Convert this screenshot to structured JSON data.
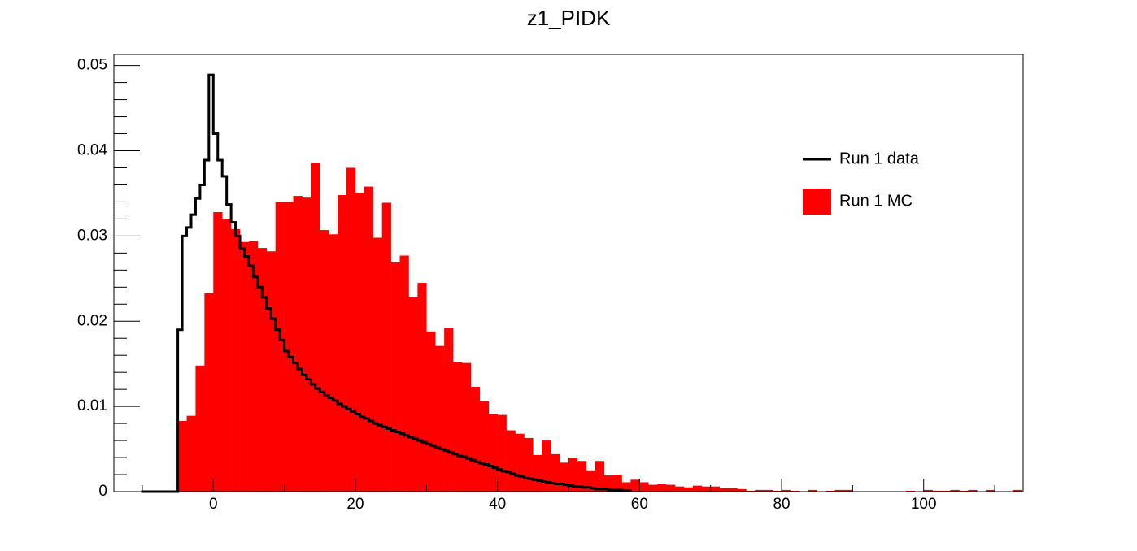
{
  "chart_data": {
    "type": "histogram",
    "title": "z1_PIDK",
    "xlim": [
      -14,
      114
    ],
    "ylim": [
      0,
      0.0513
    ],
    "xticks": [
      0,
      20,
      40,
      60,
      80,
      100
    ],
    "xminorticks": [
      -10,
      10,
      30,
      50,
      70,
      90,
      110
    ],
    "yticks": [
      0,
      0.01,
      0.02,
      0.03,
      0.04,
      0.05
    ],
    "yminorticks": [
      0.002,
      0.004,
      0.006,
      0.008,
      0.012,
      0.014,
      0.016,
      0.018,
      0.022,
      0.024,
      0.026,
      0.028,
      0.032,
      0.034,
      0.036,
      0.038,
      0.042,
      0.044,
      0.046,
      0.048
    ],
    "legend": "top-right",
    "series": [
      {
        "name": "Run 1 data",
        "color": "#000000",
        "style": "step",
        "bins": [
          -10,
          -9.375,
          -8.75,
          -8.125,
          -7.5,
          -6.875,
          -6.25,
          -5.625,
          -5,
          -4.375,
          -3.75,
          -3.125,
          -2.5,
          -1.875,
          -1.25,
          -0.625,
          0,
          0.625,
          1.25,
          1.875,
          2.5,
          3.125,
          3.75,
          4.375,
          5,
          5.625,
          6.25,
          6.875,
          7.5,
          8.125,
          8.75,
          9.375,
          10,
          10.625,
          11.25,
          11.875,
          12.5,
          13.125,
          13.75,
          14.375,
          15,
          15.625,
          16.25,
          16.875,
          17.5,
          18.125,
          18.75,
          19.375,
          20,
          20.625,
          21.25,
          21.875,
          22.5,
          23.125,
          23.75,
          24.375,
          25,
          25.625,
          26.25,
          26.875,
          27.5,
          28.125,
          28.75,
          29.375,
          30,
          30.625,
          31.25,
          31.875,
          32.5,
          33.125,
          33.75,
          34.375,
          35,
          35.625,
          36.25,
          36.875,
          37.5,
          38.125,
          38.75,
          39.375,
          40,
          40.625,
          41.25,
          41.875,
          42.5,
          43.125,
          43.75,
          44.375,
          45,
          45.625,
          46.25,
          46.875,
          47.5,
          48.125,
          48.75,
          49.375,
          50,
          50.625,
          51.25,
          51.875,
          52.5,
          53.125,
          53.75,
          54.375,
          55,
          55.625,
          56.25,
          56.875,
          57.5,
          58.125,
          58.75
        ],
        "values": [
          0,
          0,
          0,
          0,
          0,
          0,
          0,
          0,
          0.019,
          0.03,
          0.031,
          0.0325,
          0.0344,
          0.036,
          0.0389,
          0.0489,
          0.042,
          0.0389,
          0.037,
          0.0337,
          0.0316,
          0.03,
          0.0285,
          0.0276,
          0.0265,
          0.0252,
          0.024,
          0.0228,
          0.0215,
          0.0203,
          0.019,
          0.0178,
          0.0165,
          0.0158,
          0.0151,
          0.0144,
          0.0137,
          0.0132,
          0.0126,
          0.0121,
          0.0117,
          0.0113,
          0.011,
          0.0107,
          0.0103,
          0.01,
          0.0097,
          0.0094,
          0.0091,
          0.0088,
          0.0086,
          0.0083,
          0.008,
          0.0078,
          0.0076,
          0.0074,
          0.0072,
          0.007,
          0.0068,
          0.0066,
          0.0064,
          0.0062,
          0.006,
          0.0058,
          0.0056,
          0.0054,
          0.0052,
          0.005,
          0.0048,
          0.0046,
          0.0044,
          0.0042,
          0.0041,
          0.0039,
          0.0037,
          0.0035,
          0.0033,
          0.0032,
          0.003,
          0.0028,
          0.0026,
          0.0024,
          0.0023,
          0.0021,
          0.0019,
          0.0018,
          0.0016,
          0.0015,
          0.0014,
          0.0013,
          0.0012,
          0.0011,
          0.001,
          0.0009,
          0.0009,
          0.0008,
          0.0007,
          0.0006,
          0.0006,
          0.0005,
          0.0005,
          0.0004,
          0.0003,
          0.0003,
          0.0003,
          0.0002,
          0.0002,
          0.0002,
          0.0001,
          0.0001
        ]
      },
      {
        "name": "Run 1 MC",
        "color": "#ff0000",
        "style": "filled",
        "bins": [
          -10,
          -8.75,
          -7.5,
          -6.25,
          -5,
          -3.75,
          -2.5,
          -1.25,
          0,
          1.25,
          2.5,
          3.75,
          5,
          6.25,
          7.5,
          8.75,
          10,
          11.25,
          12.5,
          13.75,
          15,
          16.25,
          17.5,
          18.75,
          20,
          21.25,
          22.5,
          23.75,
          25,
          26.25,
          27.5,
          28.75,
          30,
          31.25,
          32.5,
          33.75,
          35,
          36.25,
          37.5,
          38.75,
          40,
          41.25,
          42.5,
          43.75,
          45,
          46.25,
          47.5,
          48.75,
          50,
          51.25,
          52.5,
          53.75,
          55,
          56.25,
          57.5,
          58.75,
          60,
          61.25,
          62.5,
          63.75,
          65,
          66.25,
          67.5,
          68.75,
          70,
          71.25,
          72.5,
          73.75,
          75,
          76.25,
          77.5,
          78.75,
          80,
          81.25,
          82.5,
          83.75,
          85,
          86.25,
          87.5,
          88.75,
          90,
          91.25,
          92.5,
          93.75,
          95,
          96.25,
          97.5,
          98.75,
          100,
          101.25,
          102.5,
          103.75,
          105,
          106.25,
          107.5,
          108.75,
          110,
          111.25,
          112.5,
          113.75
        ],
        "values": [
          0,
          0,
          0,
          0,
          0.0083,
          0.0089,
          0.0148,
          0.0233,
          0.0328,
          0.032,
          0.0308,
          0.0293,
          0.0294,
          0.0286,
          0.0282,
          0.034,
          0.034,
          0.0347,
          0.0345,
          0.0386,
          0.0307,
          0.0302,
          0.0348,
          0.038,
          0.0351,
          0.0358,
          0.0298,
          0.0339,
          0.0269,
          0.0277,
          0.0228,
          0.0245,
          0.0188,
          0.0171,
          0.0192,
          0.0152,
          0.0151,
          0.0123,
          0.0106,
          0.0091,
          0.009,
          0.0072,
          0.0068,
          0.0063,
          0.0043,
          0.006,
          0.0044,
          0.0034,
          0.004,
          0.0036,
          0.0025,
          0.0036,
          0.0019,
          0.002,
          0.0011,
          0.0014,
          0.0011,
          0.0008,
          0.0009,
          0.0008,
          0.0006,
          0.0005,
          0.0007,
          0.0006,
          0.0006,
          0.0004,
          0.0004,
          0.0003,
          0.0001,
          0.0002,
          0.0002,
          0.0001,
          0.0002,
          0.0001,
          0,
          0.0002,
          0,
          0.0001,
          0.0002,
          0.0002,
          0,
          0,
          0,
          0,
          0,
          0,
          0.0001,
          0,
          0.0002,
          0.0001,
          0.0001,
          0.0002,
          0.0001,
          0.0002,
          0,
          0.0002,
          0,
          0,
          0.0002
        ]
      }
    ]
  }
}
